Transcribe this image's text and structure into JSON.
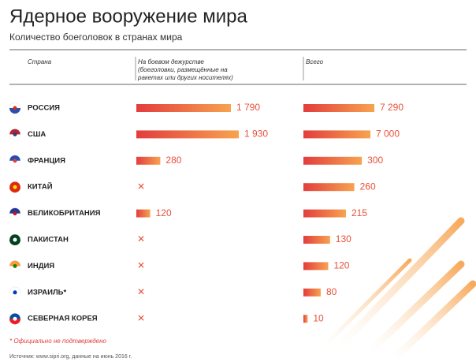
{
  "chart_data": {
    "type": "bar",
    "orientation": "horizontal",
    "title": "Ядерное вооружение мира",
    "subtitle": "Количество боеголовок в странах мира",
    "category_header": "Страна",
    "categories": [
      "РОССИЯ",
      "США",
      "ФРАНЦИЯ",
      "КИТАЙ",
      "ВЕЛИКОБРИТАНИЯ",
      "ПАКИСТАН",
      "ИНДИЯ",
      "ИЗРАИЛЬ*",
      "СЕВЕРНАЯ КОРЕЯ"
    ],
    "series": [
      {
        "name": "На боевом дежурстве",
        "description": "(боеголовки, размещённые на ракетах или других носителях)",
        "color": "#e8503a",
        "values": [
          1790,
          1930,
          280,
          null,
          120,
          null,
          null,
          null,
          null
        ],
        "value_labels": [
          "1 790",
          "1 930",
          "280",
          null,
          "120",
          null,
          null,
          null,
          null
        ]
      },
      {
        "name": "Всего",
        "color": "#e8503a",
        "values": [
          7290,
          7000,
          300,
          260,
          215,
          130,
          120,
          80,
          10
        ],
        "value_labels": [
          "7 290",
          "7 000",
          "300",
          "260",
          "215",
          "130",
          "120",
          "80",
          "10"
        ]
      }
    ],
    "footnote": "* Официально не подтверждено",
    "source": "Источник: www.sipri.org, данные на июнь 2016 г."
  }
}
